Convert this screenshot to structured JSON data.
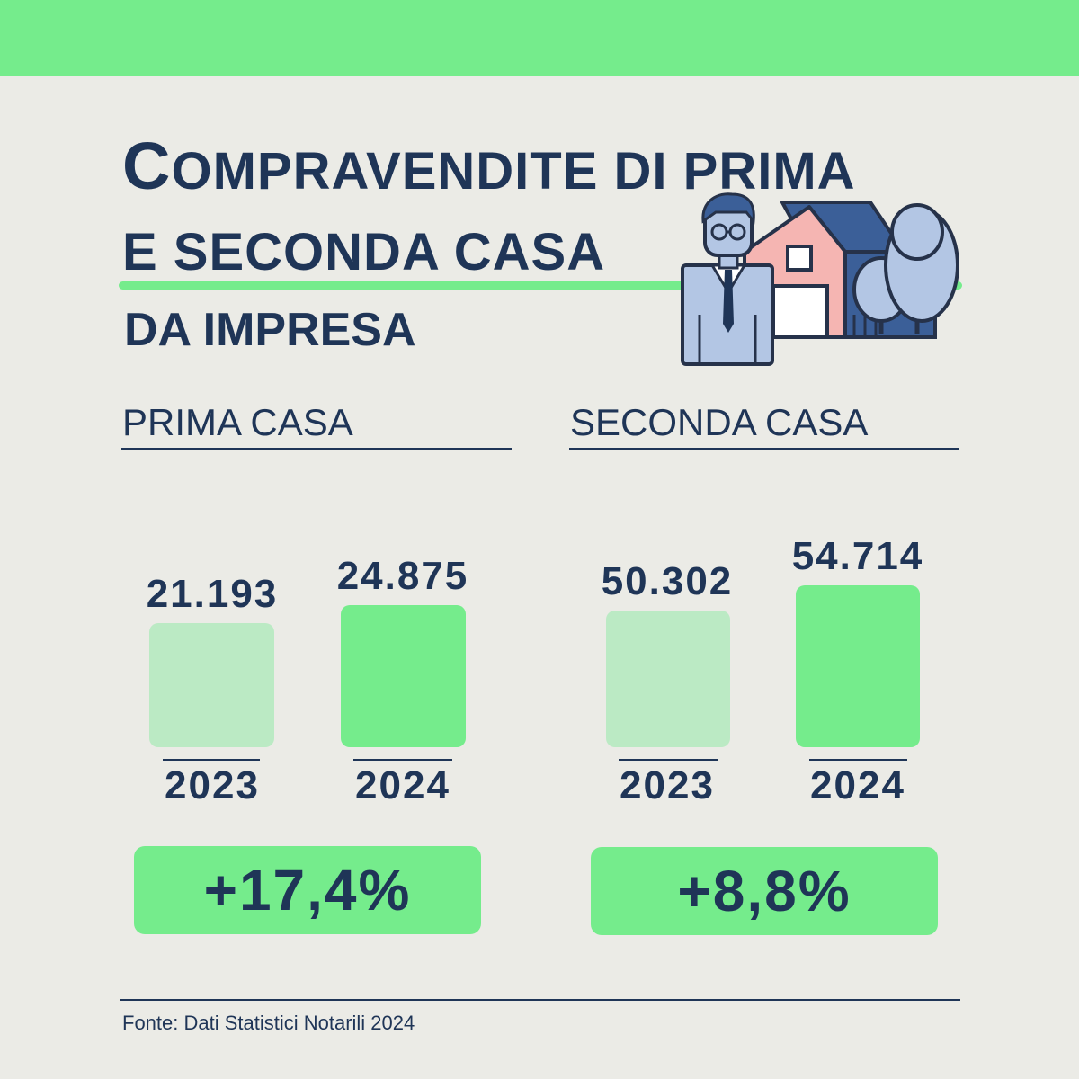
{
  "header": {
    "title_initial": "C",
    "title_line1_rest": "OMPRAVENDITE DI PRIMA",
    "title_line2": "E SECONDA CASA",
    "subtitle": "DA IMPRESA"
  },
  "colors": {
    "brand_green": "#75ec8c",
    "light_green": "#bbeac4",
    "navy": "#1f3557",
    "background": "#ebebe6"
  },
  "illustration": {
    "icons": [
      "businessman-icon",
      "house-icon",
      "tree-icon"
    ]
  },
  "chart_data": [
    {
      "type": "bar",
      "title": "PRIMA CASA",
      "categories": [
        "2023",
        "2024"
      ],
      "values": [
        21193,
        24875
      ],
      "value_labels": [
        "21.193",
        "24.875"
      ],
      "change": "+17,4%",
      "ylim": [
        0,
        55000
      ],
      "grid": false
    },
    {
      "type": "bar",
      "title": "SECONDA CASA",
      "categories": [
        "2023",
        "2024"
      ],
      "values": [
        50302,
        54714
      ],
      "value_labels": [
        "50.302",
        "54.714"
      ],
      "change": "+8,8%",
      "ylim": [
        0,
        55000
      ],
      "grid": false
    }
  ],
  "footer": {
    "source": "Fonte: Dati Statistici Notarili 2024"
  }
}
